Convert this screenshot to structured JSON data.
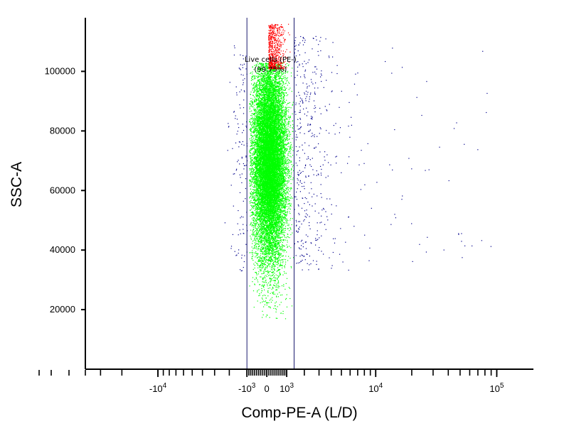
{
  "chart_data": {
    "type": "scatter",
    "plot_kind": "flow-cytometry dot plot",
    "xlabel": "Comp-PE-A (L/D)",
    "ylabel": "SSC-A",
    "x_scale": "biexponential",
    "x_ticks": [
      {
        "value": -10000,
        "base": "-10",
        "exp": "4"
      },
      {
        "value": -1000,
        "base": "-10",
        "exp": "3"
      },
      {
        "value": 0,
        "base": "0",
        "exp": ""
      },
      {
        "value": 1000,
        "base": "10",
        "exp": "3"
      },
      {
        "value": 10000,
        "base": "10",
        "exp": "4"
      },
      {
        "value": 100000,
        "base": "10",
        "exp": "5"
      }
    ],
    "xlim": [
      -40000,
      200000
    ],
    "y_ticks": [
      20000,
      40000,
      60000,
      80000,
      100000
    ],
    "y_tick_labels": [
      "20000",
      "40000",
      "60000",
      "80000",
      "100000"
    ],
    "ylim": [
      0,
      118000
    ],
    "grid": false,
    "gate": {
      "name": "Live cells (PE-)",
      "percent_label": "(99.75%)",
      "x_range": [
        -1000,
        1400
      ]
    },
    "populations": [
      {
        "role": "live cells inside gate",
        "color": "#00ff00",
        "x_center": 120,
        "x_spread": 420,
        "y_range": [
          17000,
          103000
        ],
        "y_peak": 70000
      },
      {
        "role": "high SSC events inside gate",
        "color": "#ff0000",
        "x_center": 150,
        "x_spread": 350,
        "y_range": [
          101000,
          116000
        ]
      },
      {
        "role": "events outside gate",
        "color": "#00008b",
        "x_range": [
          -9000,
          90000
        ],
        "y_range": [
          33000,
          112000
        ]
      }
    ]
  }
}
